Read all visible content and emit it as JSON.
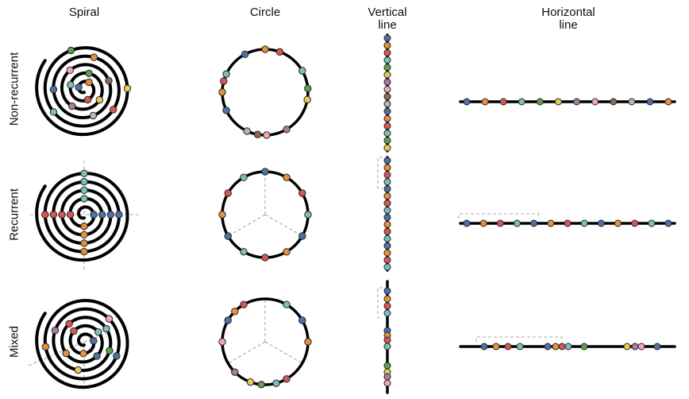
{
  "columns": [
    {
      "key": "spiral",
      "title": "Spiral"
    },
    {
      "key": "circle",
      "title": "Circle"
    },
    {
      "key": "vline",
      "title": "Vertical\nline"
    },
    {
      "key": "hline",
      "title": "Horizontal\nline"
    }
  ],
  "rows": [
    {
      "key": "nonrec",
      "label": "Non-recurrent"
    },
    {
      "key": "rec",
      "label": "Recurrent"
    },
    {
      "key": "mixed",
      "label": "Mixed"
    }
  ],
  "colors": {
    "blue": "#4e72a8",
    "orange": "#e8903a",
    "red": "#d9555a",
    "teal": "#7cc0b8",
    "green": "#5ea04e",
    "yellow": "#eacb50",
    "purple": "#a77ba3",
    "pink": "#f4a4b6",
    "brown": "#8e6b55",
    "gray": "#bdb6b3"
  },
  "sequences": {
    "nonrec": [
      "blue",
      "orange",
      "red",
      "teal",
      "green",
      "yellow",
      "purple",
      "pink",
      "brown",
      "gray",
      "blue",
      "orange",
      "red",
      "teal",
      "green",
      "yellow",
      "purple",
      "pink",
      "brown",
      "gray",
      "blue",
      "orange",
      "red",
      "teal"
    ],
    "rec": [
      "blue",
      "orange",
      "red",
      "teal",
      "blue",
      "orange",
      "red",
      "teal",
      "blue",
      "orange",
      "red",
      "teal",
      "blue",
      "orange",
      "red",
      "teal",
      "blue",
      "orange",
      "red",
      "teal",
      "blue",
      "orange",
      "red",
      "teal"
    ],
    "mixed": [
      "blue",
      "orange",
      "red",
      "teal",
      "blue",
      "orange",
      "red",
      "teal",
      "green",
      "yellow",
      "purple",
      "pink",
      "blue",
      "orange",
      "red",
      "teal",
      "blue",
      "orange",
      "red",
      "teal",
      "yellow",
      "green",
      "purple",
      "pink"
    ]
  },
  "recurrence_period": 4
}
